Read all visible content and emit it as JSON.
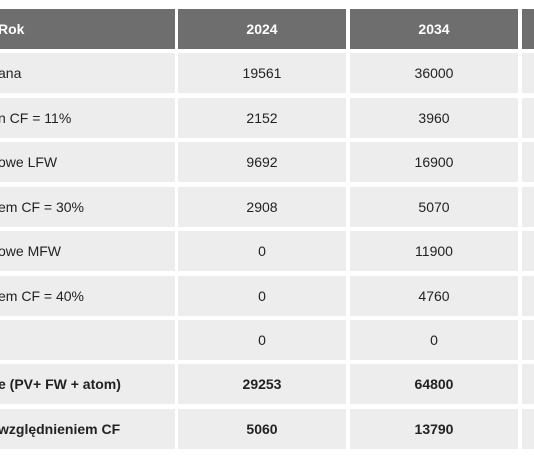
{
  "header": {
    "label": "Rok",
    "col1": "2024",
    "col2": "2034"
  },
  "rows": [
    {
      "label": "ana",
      "v1": "19561",
      "v2": "36000",
      "bold": false
    },
    {
      "label": "n CF = 11%",
      "v1": "2152",
      "v2": "3960",
      "bold": false
    },
    {
      "label": "owe LFW",
      "v1": "9692",
      "v2": "16900",
      "bold": false
    },
    {
      "label": "em CF = 30%",
      "v1": "2908",
      "v2": "5070",
      "bold": false
    },
    {
      "label": "owe MFW",
      "v1": "0",
      "v2": "11900",
      "bold": false
    },
    {
      "label": "em CF = 40%",
      "v1": "0",
      "v2": "4760",
      "bold": false
    },
    {
      "label": "",
      "v1": "0",
      "v2": "0",
      "bold": false
    },
    {
      "label": "e (PV+ FW + atom)",
      "v1": "29253",
      "v2": "64800",
      "bold": true
    },
    {
      "label": "względnieniem CF",
      "v1": "5060",
      "v2": "13790",
      "bold": true
    }
  ]
}
